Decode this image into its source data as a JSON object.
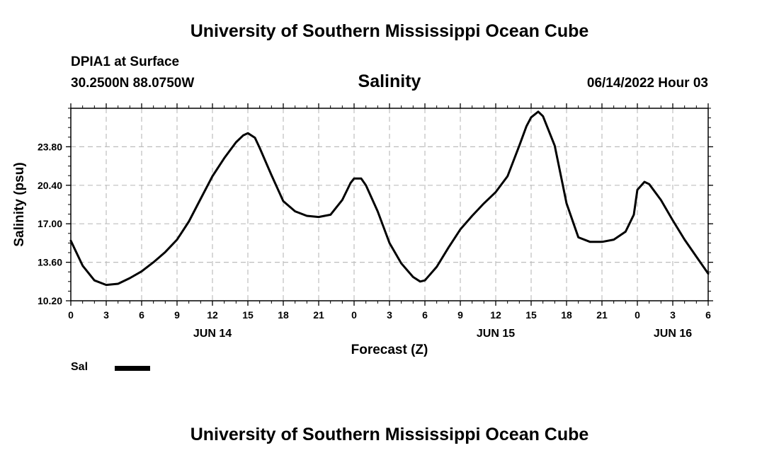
{
  "header": {
    "title": "University of Southern Mississippi Ocean Cube",
    "station": "DPIA1 at Surface",
    "coords": "30.2500N  88.0750W",
    "datetime": "06/14/2022 Hour 03"
  },
  "footer": {
    "title": "University of Southern Mississippi Ocean Cube"
  },
  "chart_data": {
    "type": "line",
    "title": "Salinity",
    "xlabel": "Forecast (Z)",
    "ylabel": "Salinity (psu)",
    "xlim": [
      0,
      54
    ],
    "ylim": [
      10.2,
      27.2
    ],
    "yticks": [
      "10.20",
      "13.60",
      "17.00",
      "20.40",
      "23.80"
    ],
    "ytick_values": [
      10.2,
      13.6,
      17.0,
      20.4,
      23.8
    ],
    "xticks": [
      "0",
      "3",
      "6",
      "9",
      "12",
      "15",
      "18",
      "21",
      "0",
      "3",
      "6",
      "9",
      "12",
      "15",
      "18",
      "21",
      "0",
      "3",
      "6"
    ],
    "xtick_values": [
      0,
      3,
      6,
      9,
      12,
      15,
      18,
      21,
      24,
      27,
      30,
      33,
      36,
      39,
      42,
      45,
      48,
      51,
      54
    ],
    "day_labels": [
      {
        "label": "JUN 14",
        "x": 12
      },
      {
        "label": "JUN 15",
        "x": 36
      },
      {
        "label": "JUN 16",
        "x": 51
      }
    ],
    "grid": true,
    "legend": {
      "position": "bottom-left",
      "entries": [
        "Sal"
      ]
    },
    "series": [
      {
        "name": "Sal",
        "color": "#000000",
        "x": [
          0,
          1,
          2,
          3,
          4,
          5,
          6,
          7,
          8,
          9,
          10,
          11,
          12,
          13,
          14,
          14.6,
          15,
          15.6,
          16,
          17,
          18,
          19,
          20,
          21,
          22,
          23,
          23.7,
          24,
          24.6,
          25,
          26,
          27,
          28,
          29,
          29.6,
          30,
          31,
          32,
          33,
          34,
          35,
          36,
          37,
          38,
          38.6,
          39,
          39.6,
          40,
          41,
          42,
          43,
          44,
          45,
          46,
          47,
          47.7,
          48,
          48.6,
          49,
          50,
          51,
          52,
          53,
          54
        ],
        "y": [
          15.5,
          13.3,
          12.0,
          11.6,
          11.7,
          12.2,
          12.8,
          13.6,
          14.5,
          15.6,
          17.2,
          19.2,
          21.2,
          22.8,
          24.2,
          24.8,
          25.0,
          24.6,
          23.7,
          21.3,
          19.0,
          18.1,
          17.7,
          17.6,
          17.8,
          19.1,
          20.6,
          21.0,
          21.0,
          20.4,
          18.1,
          15.3,
          13.5,
          12.3,
          11.9,
          12.0,
          13.2,
          14.9,
          16.5,
          17.7,
          18.8,
          19.8,
          21.2,
          23.9,
          25.6,
          26.4,
          26.9,
          26.5,
          23.9,
          18.8,
          15.8,
          15.4,
          15.4,
          15.6,
          16.3,
          17.8,
          20.0,
          20.7,
          20.5,
          19.1,
          17.3,
          15.6,
          14.1,
          12.6
        ]
      }
    ]
  }
}
